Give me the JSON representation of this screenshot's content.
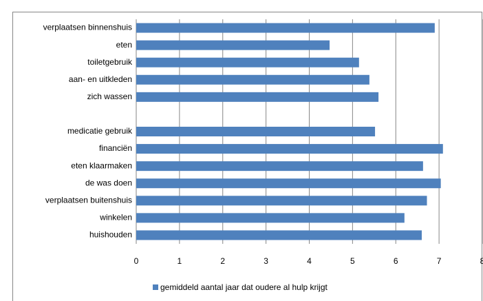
{
  "chart_data": {
    "type": "bar",
    "orientation": "horizontal",
    "categories": [
      "verplaatsen binnenshuis",
      "eten",
      "toiletgebruik",
      "aan- en uitkleden",
      "zich wassen",
      null,
      "medicatie gebruik",
      "financiën",
      "eten klaarmaken",
      "de was doen",
      "verplaatsen buitenshuis",
      "winkelen",
      "huishouden"
    ],
    "series": [
      {
        "name": "gemiddeld aantal jaar dat oudere al hulp krijgt",
        "color": "#4f81bd",
        "values": [
          6.9,
          4.47,
          5.15,
          5.39,
          5.6,
          null,
          5.52,
          7.09,
          6.63,
          7.04,
          6.72,
          6.2,
          6.6
        ]
      }
    ],
    "xlim": [
      0,
      8
    ],
    "xticks": [
      0,
      1,
      2,
      3,
      4,
      5,
      6,
      7,
      8
    ],
    "grid": true,
    "legend": "bottom"
  }
}
